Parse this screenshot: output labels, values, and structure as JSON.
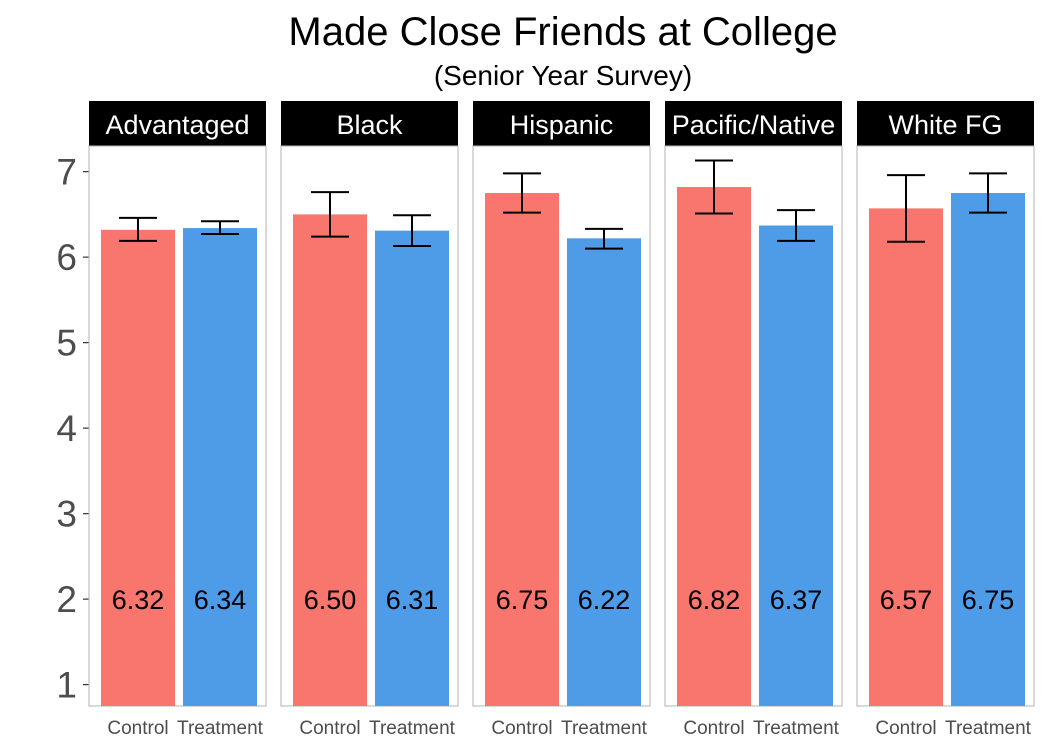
{
  "chart_data": {
    "type": "bar",
    "title": "Made Close Friends at College",
    "subtitle": "(Senior Year Survey)",
    "xlabel": "",
    "ylabel": "",
    "ylim": [
      0.75,
      7.3
    ],
    "yticks": [
      "1",
      "2",
      "3",
      "4",
      "5",
      "6",
      "7"
    ],
    "facets": [
      "Advantaged",
      "Black",
      "Hispanic",
      "Pacific/Native",
      "White FG"
    ],
    "categories": [
      "Control",
      "Treatment"
    ],
    "colors": {
      "Control": "#F8766D",
      "Treatment": "#4E9BE8"
    },
    "grid": false,
    "legend": "none",
    "panels": [
      {
        "facet": "Advantaged",
        "values": [
          6.32,
          6.34
        ],
        "labels": [
          "6.32",
          "6.34"
        ],
        "error_low": [
          6.19,
          6.27
        ],
        "error_high": [
          6.46,
          6.42
        ]
      },
      {
        "facet": "Black",
        "values": [
          6.5,
          6.31
        ],
        "labels": [
          "6.50",
          "6.31"
        ],
        "error_low": [
          6.24,
          6.13
        ],
        "error_high": [
          6.76,
          6.49
        ]
      },
      {
        "facet": "Hispanic",
        "values": [
          6.75,
          6.22
        ],
        "labels": [
          "6.75",
          "6.22"
        ],
        "error_low": [
          6.52,
          6.1
        ],
        "error_high": [
          6.98,
          6.33
        ]
      },
      {
        "facet": "Pacific/Native",
        "values": [
          6.82,
          6.37
        ],
        "labels": [
          "6.82",
          "6.37"
        ],
        "error_low": [
          6.51,
          6.19
        ],
        "error_high": [
          7.13,
          6.55
        ]
      },
      {
        "facet": "White FG",
        "values": [
          6.57,
          6.75
        ],
        "labels": [
          "6.57",
          "6.75"
        ],
        "error_low": [
          6.18,
          6.52
        ],
        "error_high": [
          6.96,
          6.98
        ]
      }
    ]
  }
}
